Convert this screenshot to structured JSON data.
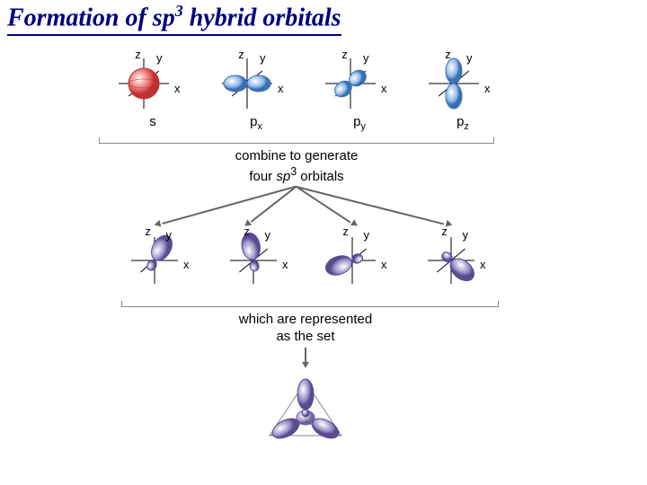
{
  "title": {
    "prefix": "Formation of sp",
    "sup": "3",
    "suffix": " hybrid orbitals",
    "color": "#000080",
    "fontsize": 28
  },
  "axis_labels": {
    "x": "x",
    "y": "y",
    "z": "z"
  },
  "row1": {
    "orbitals": [
      {
        "label": "s",
        "type": "sphere",
        "color": "#e96a6a",
        "stroke": "#c03030"
      },
      {
        "label": "p",
        "sub": "x",
        "type": "px",
        "color": "#8fb8e8",
        "stroke": "#3a70b0"
      },
      {
        "label": "p",
        "sub": "y",
        "type": "py",
        "color": "#8fb8e8",
        "stroke": "#3a70b0"
      },
      {
        "label": "p",
        "sub": "z",
        "type": "pz",
        "color": "#8fb8e8",
        "stroke": "#3a70b0"
      }
    ]
  },
  "caption1": {
    "line1": "combine to generate",
    "line2_a": "four ",
    "line2_b": "sp",
    "line2_sup": "3",
    "line2_c": " orbitals"
  },
  "row2": {
    "orbitals": [
      {
        "type": "sp3",
        "angle": -60,
        "color": "#9a8fc7",
        "stroke": "#5a4a90"
      },
      {
        "type": "sp3",
        "angle": -100,
        "color": "#9a8fc7",
        "stroke": "#5a4a90"
      },
      {
        "type": "sp3",
        "angle": 160,
        "color": "#9a8fc7",
        "stroke": "#5a4a90"
      },
      {
        "type": "sp3",
        "angle": 40,
        "color": "#9a8fc7",
        "stroke": "#5a4a90"
      }
    ]
  },
  "caption2": {
    "line1": "which are represented",
    "line2": "as the set"
  },
  "tetra": {
    "color": "#9a8fc7",
    "stroke": "#5a4a90",
    "frame": "#888"
  }
}
